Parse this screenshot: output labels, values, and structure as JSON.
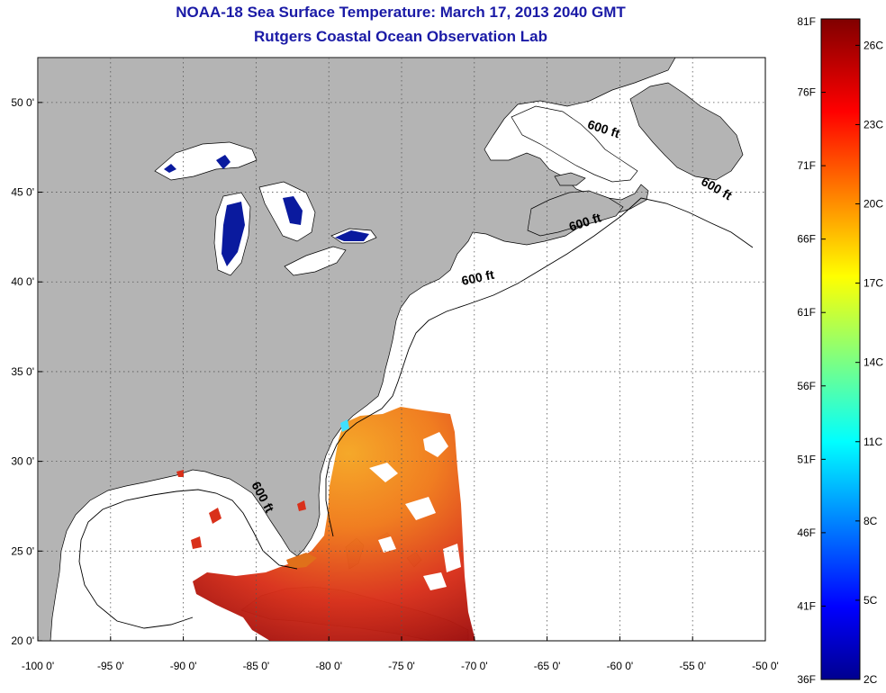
{
  "title": {
    "line1": "NOAA-18 Sea Surface Temperature:  March 17, 2013 2040 GMT",
    "line2": "Rutgers Coastal Ocean Observation Lab"
  },
  "map": {
    "lon_range": [
      -100,
      -50
    ],
    "lat_range": [
      20,
      52.5
    ],
    "lon_ticks": [
      {
        "value": -100,
        "label": "-100 0'"
      },
      {
        "value": -95,
        "label": "-95 0'"
      },
      {
        "value": -90,
        "label": "-90 0'"
      },
      {
        "value": -85,
        "label": "-85 0'"
      },
      {
        "value": -80,
        "label": "-80 0'"
      },
      {
        "value": -75,
        "label": "-75 0'"
      },
      {
        "value": -70,
        "label": "-70 0'"
      },
      {
        "value": -65,
        "label": "-65 0'"
      },
      {
        "value": -60,
        "label": "-60 0'"
      },
      {
        "value": -55,
        "label": "-55 0'"
      },
      {
        "value": -50,
        "label": "-50 0'"
      }
    ],
    "lat_ticks": [
      {
        "value": 50,
        "label": "50 0'"
      },
      {
        "value": 45,
        "label": "45 0'"
      },
      {
        "value": 40,
        "label": "40 0'"
      },
      {
        "value": 35,
        "label": "35 0'"
      },
      {
        "value": 30,
        "label": "30 0'"
      },
      {
        "value": 25,
        "label": "25 0'"
      },
      {
        "value": 20,
        "label": "20 0'"
      }
    ],
    "isobath_labels": [
      {
        "text": "600 ft",
        "lon": -61.2,
        "lat": 48.3,
        "rotate": 18
      },
      {
        "text": "600 ft",
        "lon": -53.5,
        "lat": 45.0,
        "rotate": 30
      },
      {
        "text": "600 ft",
        "lon": -62.3,
        "lat": 43.1,
        "rotate": -18
      },
      {
        "text": "600 ft",
        "lon": -69.7,
        "lat": 40.0,
        "rotate": -12
      },
      {
        "text": "600 ft",
        "lon": -84.8,
        "lat": 27.9,
        "rotate": 62
      }
    ],
    "colors": {
      "land": "#b4b4b4",
      "ocean_no_data": "#ffffff",
      "lakes": "#0a1a9e",
      "grid": "#555555"
    }
  },
  "colorbar": {
    "range_f": [
      36,
      81
    ],
    "range_c": [
      2,
      27
    ],
    "f_labels": [
      "81F",
      "76F",
      "71F",
      "66F",
      "61F",
      "56F",
      "51F",
      "46F",
      "41F",
      "36F"
    ],
    "c_labels": [
      "26C",
      "23C",
      "20C",
      "17C",
      "14C",
      "11C",
      "8C",
      "5C",
      "2C"
    ],
    "c_values": [
      26,
      23,
      20,
      17,
      14,
      11,
      8,
      5,
      2
    ],
    "colormap": "jet"
  }
}
